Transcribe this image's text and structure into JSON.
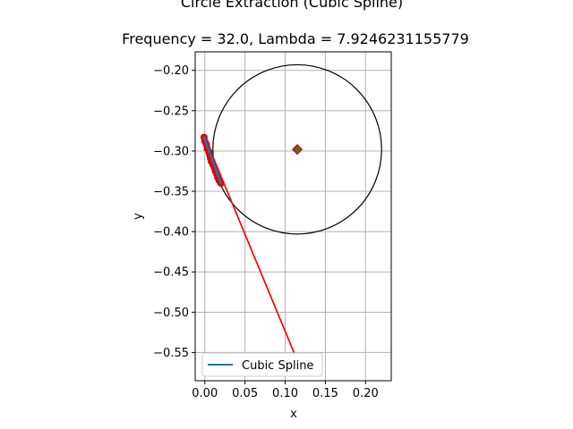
{
  "chart_data": {
    "type": "scatter",
    "title": "Circle Extraction (Cubic Spline)",
    "subtitle": "Frequency = 32.0, Lambda = 7.9246231155779",
    "xlabel": "x",
    "ylabel": "y",
    "xlim": [
      -0.012,
      0.232
    ],
    "ylim": [
      -0.585,
      -0.177
    ],
    "xticks": [
      0.0,
      0.05,
      0.1,
      0.15,
      0.2
    ],
    "xtick_labels": [
      "0.00",
      "0.05",
      "0.10",
      "0.15",
      "0.20"
    ],
    "yticks": [
      -0.2,
      -0.25,
      -0.3,
      -0.35,
      -0.4,
      -0.45,
      -0.5,
      -0.55
    ],
    "ytick_labels": [
      "−0.20",
      "−0.25",
      "−0.30",
      "−0.35",
      "−0.40",
      "−0.45",
      "−0.50",
      "−0.55"
    ],
    "grid": true,
    "legend": {
      "placement": "lower-left",
      "entries": [
        {
          "label": "Cubic Spline",
          "color": "#1f77b4"
        }
      ]
    },
    "points": {
      "color": "#e00000",
      "x": [
        -0.001,
        0.0,
        0.002,
        0.003,
        0.005,
        0.006,
        0.007,
        0.008,
        0.01,
        0.012,
        0.013,
        0.015,
        0.016,
        0.018,
        0.02
      ],
      "y": [
        -0.283,
        -0.288,
        -0.292,
        -0.297,
        -0.301,
        -0.305,
        -0.309,
        -0.313,
        -0.317,
        -0.321,
        -0.325,
        -0.329,
        -0.333,
        -0.337,
        -0.34
      ]
    },
    "spline": {
      "color": "#1f77b4",
      "x": [
        -0.001,
        0.02
      ],
      "y": [
        -0.283,
        -0.34
      ]
    },
    "fit_line": {
      "color": "#ff0000",
      "x": [
        0.0,
        0.113
      ],
      "y": [
        -0.283,
        -0.555
      ]
    },
    "circle": {
      "center": [
        0.115,
        -0.298
      ],
      "radius": 0.105,
      "color": "#000000"
    },
    "center_marker": {
      "x": 0.115,
      "y": -0.298,
      "color": "#228b22",
      "edge": "#e00000"
    }
  }
}
